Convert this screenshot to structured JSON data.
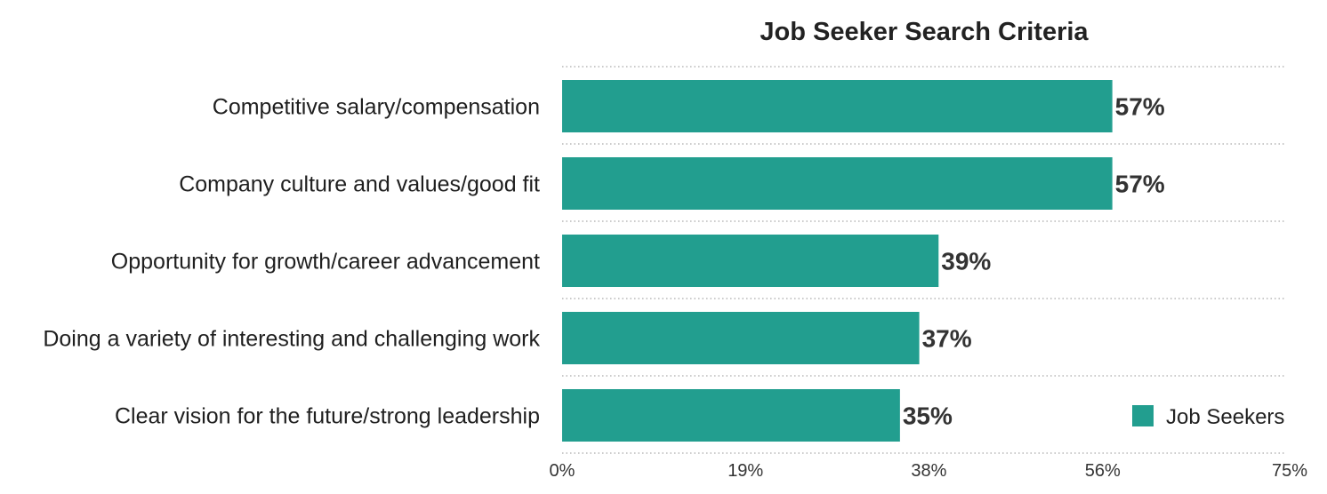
{
  "chart_data": {
    "type": "bar",
    "orientation": "horizontal",
    "title": "Job Seeker Search Criteria",
    "categories": [
      "Competitive salary/compensation",
      "Company culture and values/good fit",
      "Opportunity for growth/career advancement",
      "Doing a variety of interesting and challenging work",
      "Clear vision for the future/strong leadership"
    ],
    "series": [
      {
        "name": "Job Seekers",
        "values": [
          57,
          57,
          39,
          37,
          35
        ],
        "value_labels": [
          "57%",
          "57%",
          "39%",
          "37%",
          "35%"
        ],
        "color": "#229e8f"
      }
    ],
    "xlim": [
      0,
      75
    ],
    "x_ticks": [
      0,
      19,
      38,
      56,
      75
    ],
    "x_tick_labels": [
      "0%",
      "19%",
      "38%",
      "56%",
      "75%"
    ],
    "grid": "dotted horizontal separators",
    "legend": "bottom-right"
  }
}
